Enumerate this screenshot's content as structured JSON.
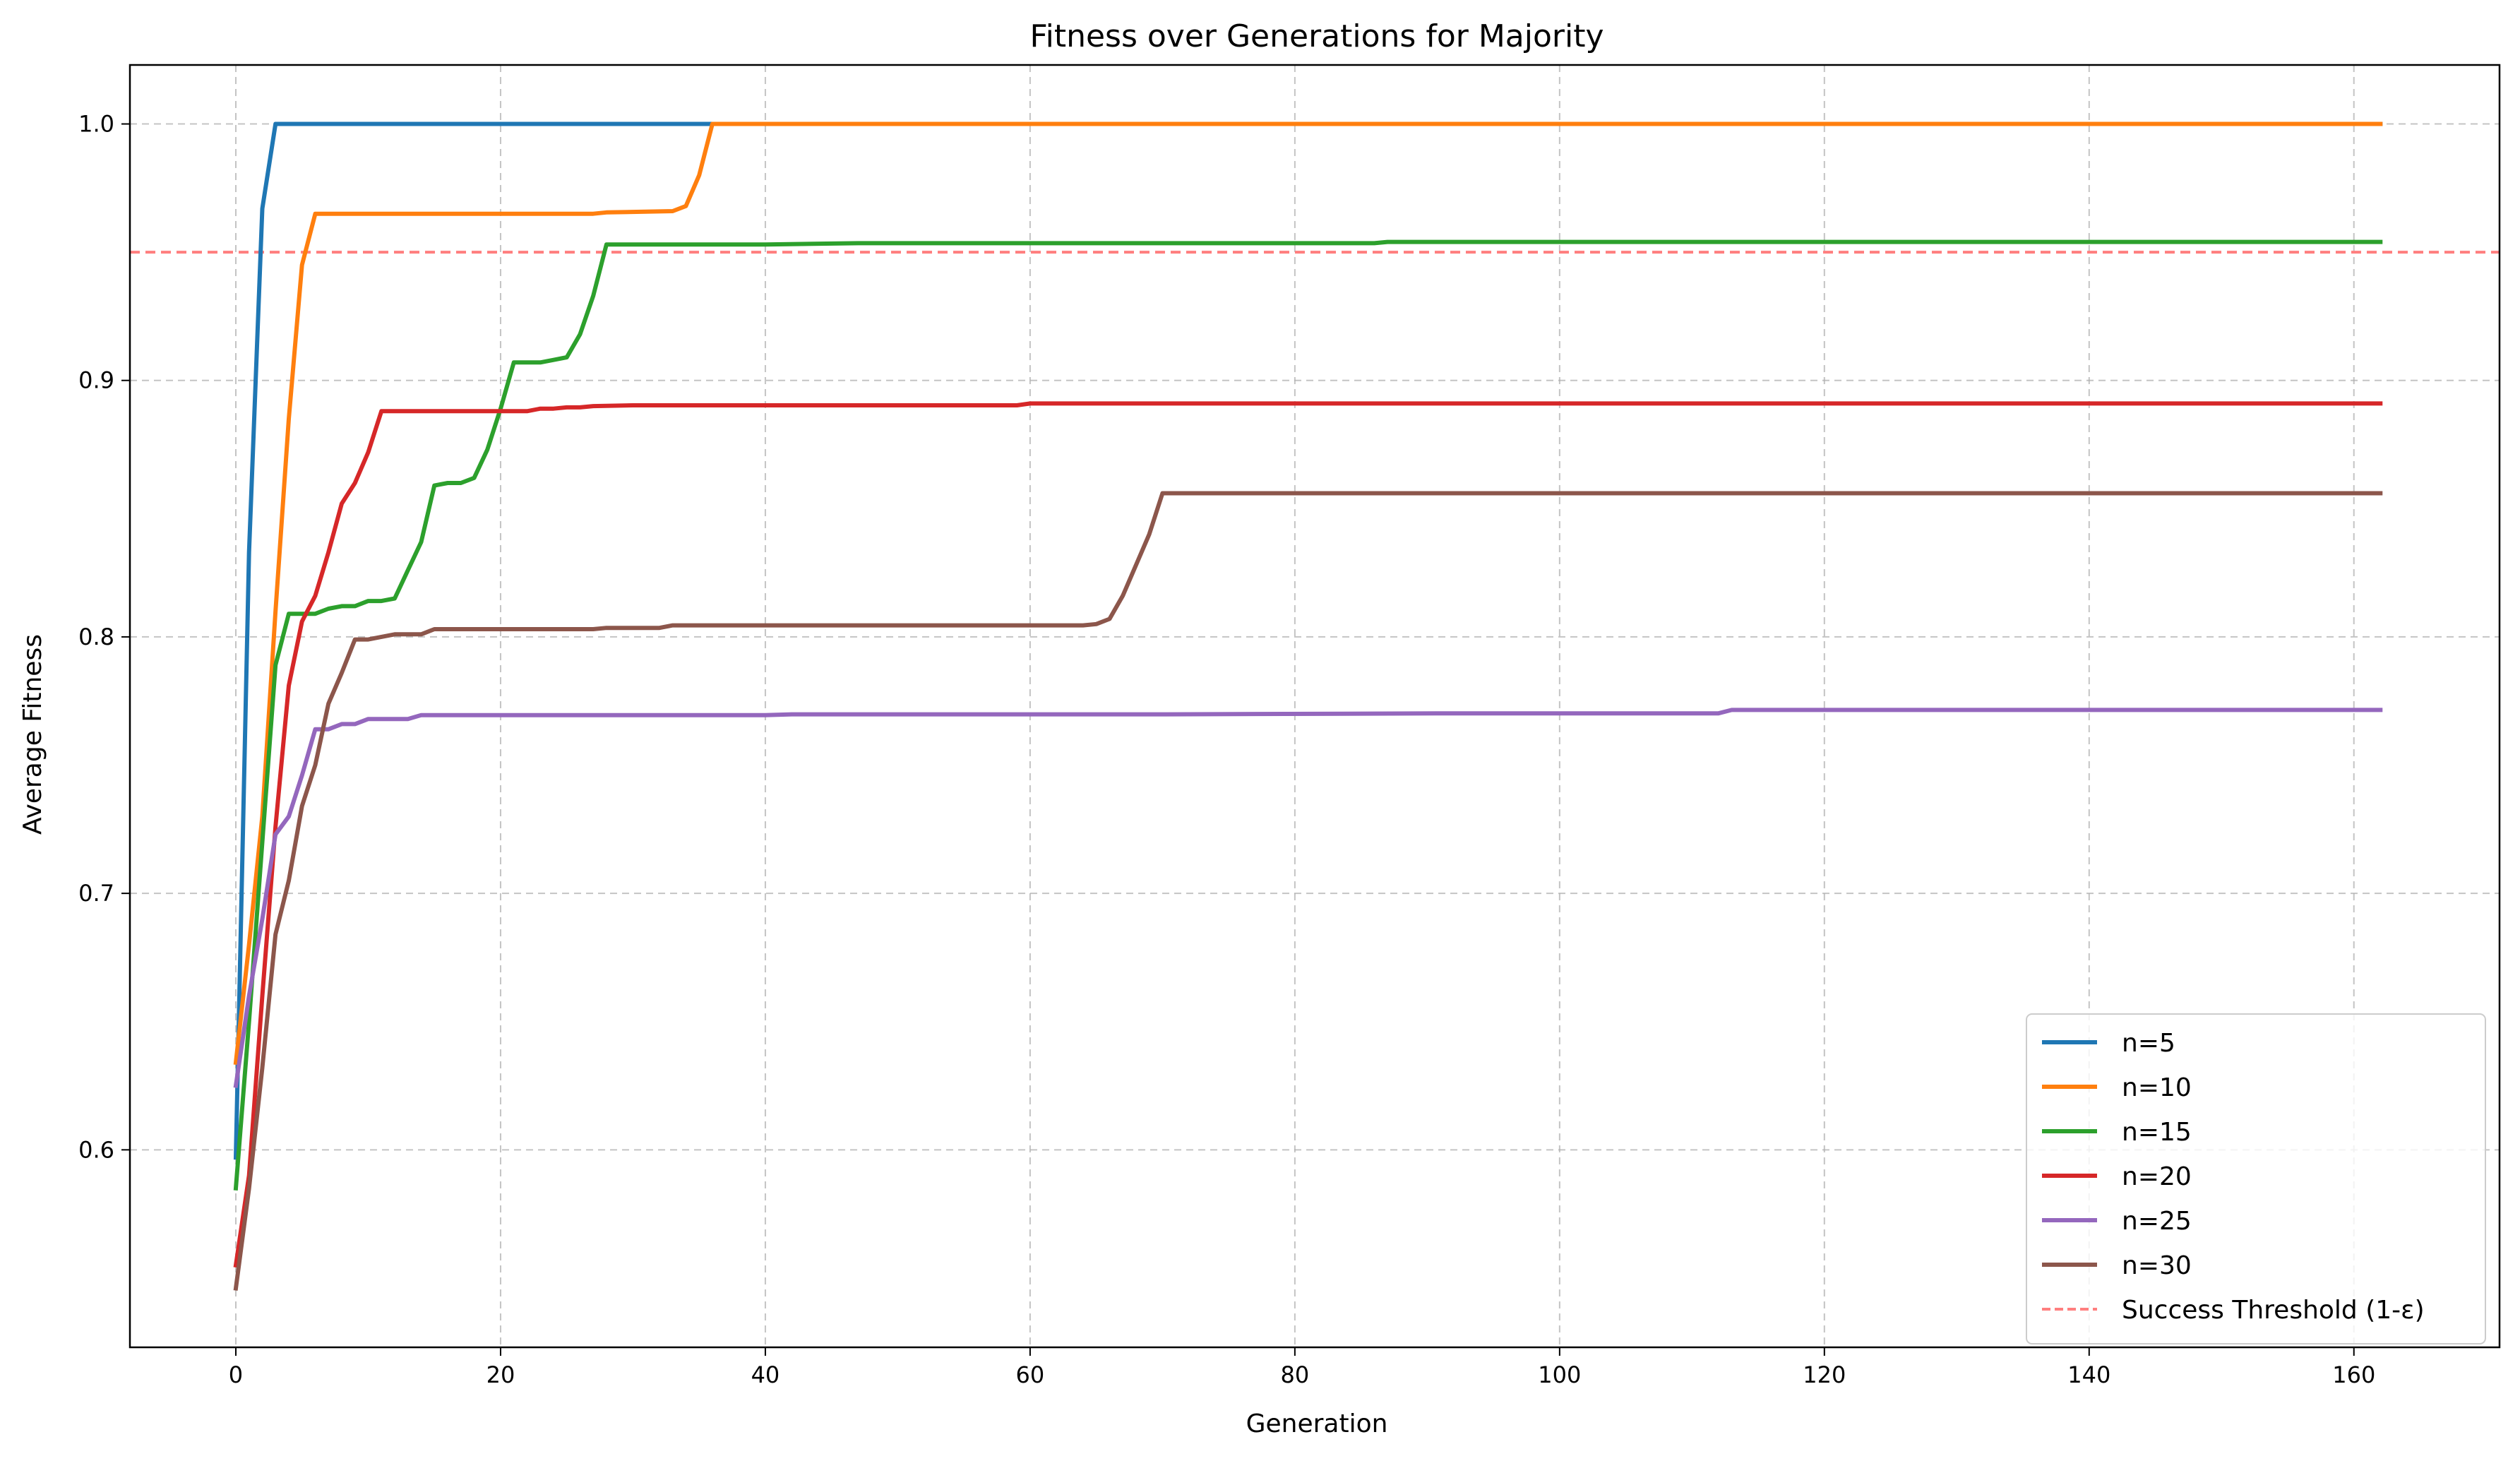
{
  "chart_data": {
    "type": "line",
    "title": "Fitness over Generations for Majority",
    "xlabel": "Generation",
    "ylabel": "Average Fitness",
    "xlim": [
      -8,
      171
    ],
    "ylim": [
      0.523,
      1.023
    ],
    "xticks": [
      0,
      20,
      40,
      60,
      80,
      100,
      120,
      140,
      160
    ],
    "yticks": [
      0.6,
      0.7,
      0.8,
      0.9,
      1.0
    ],
    "xtick_labels": [
      "0",
      "20",
      "40",
      "60",
      "80",
      "100",
      "120",
      "140",
      "160"
    ],
    "ytick_labels": [
      "0.6",
      "0.7",
      "0.8",
      "0.9",
      "1.0"
    ],
    "grid": true,
    "legend_position": "lower-right",
    "series": [
      {
        "name": "n=5",
        "color": "#1f77b4",
        "points": [
          [
            0,
            0.597
          ],
          [
            1,
            0.833
          ],
          [
            2,
            0.967
          ],
          [
            3,
            1.0
          ],
          [
            36,
            1.0
          ],
          [
            162,
            1.0
          ]
        ]
      },
      {
        "name": "n=10",
        "color": "#ff7f0e",
        "points": [
          [
            0,
            0.634
          ],
          [
            1,
            0.68
          ],
          [
            2,
            0.73
          ],
          [
            3,
            0.81
          ],
          [
            4,
            0.885
          ],
          [
            5,
            0.945
          ],
          [
            6,
            0.965
          ],
          [
            20,
            0.965
          ],
          [
            27,
            0.965
          ],
          [
            28,
            0.9655
          ],
          [
            33,
            0.966
          ],
          [
            34,
            0.968
          ],
          [
            35,
            0.98
          ],
          [
            36,
            1.0
          ],
          [
            162,
            1.0
          ]
        ]
      },
      {
        "name": "n=15",
        "color": "#2ca02c",
        "points": [
          [
            0,
            0.585
          ],
          [
            1,
            0.65
          ],
          [
            2,
            0.72
          ],
          [
            3,
            0.789
          ],
          [
            4,
            0.809
          ],
          [
            5,
            0.809
          ],
          [
            6,
            0.809
          ],
          [
            7,
            0.811
          ],
          [
            8,
            0.812
          ],
          [
            9,
            0.812
          ],
          [
            10,
            0.814
          ],
          [
            11,
            0.814
          ],
          [
            12,
            0.815
          ],
          [
            13,
            0.826
          ],
          [
            14,
            0.837
          ],
          [
            15,
            0.859
          ],
          [
            16,
            0.86
          ],
          [
            17,
            0.86
          ],
          [
            18,
            0.862
          ],
          [
            19,
            0.873
          ],
          [
            20,
            0.889
          ],
          [
            21,
            0.907
          ],
          [
            23,
            0.907
          ],
          [
            24,
            0.908
          ],
          [
            25,
            0.909
          ],
          [
            26,
            0.918
          ],
          [
            27,
            0.933
          ],
          [
            28,
            0.953
          ],
          [
            40,
            0.953
          ],
          [
            47,
            0.9535
          ],
          [
            60,
            0.9535
          ],
          [
            86,
            0.9535
          ],
          [
            87,
            0.954
          ],
          [
            162,
            0.954
          ]
        ]
      },
      {
        "name": "n=20",
        "color": "#d62728",
        "points": [
          [
            0,
            0.555
          ],
          [
            1,
            0.59
          ],
          [
            2,
            0.66
          ],
          [
            3,
            0.726
          ],
          [
            4,
            0.781
          ],
          [
            5,
            0.806
          ],
          [
            6,
            0.816
          ],
          [
            7,
            0.833
          ],
          [
            8,
            0.852
          ],
          [
            9,
            0.86
          ],
          [
            10,
            0.872
          ],
          [
            11,
            0.888
          ],
          [
            21,
            0.888
          ],
          [
            22,
            0.888
          ],
          [
            23,
            0.889
          ],
          [
            24,
            0.889
          ],
          [
            25,
            0.8895
          ],
          [
            26,
            0.8895
          ],
          [
            27,
            0.89
          ],
          [
            30,
            0.8903
          ],
          [
            59,
            0.8903
          ],
          [
            60,
            0.891
          ],
          [
            162,
            0.891
          ]
        ]
      },
      {
        "name": "n=25",
        "color": "#9467bd",
        "points": [
          [
            0,
            0.625
          ],
          [
            1,
            0.66
          ],
          [
            2,
            0.69
          ],
          [
            3,
            0.723
          ],
          [
            4,
            0.73
          ],
          [
            5,
            0.746
          ],
          [
            6,
            0.764
          ],
          [
            7,
            0.764
          ],
          [
            8,
            0.766
          ],
          [
            9,
            0.766
          ],
          [
            10,
            0.768
          ],
          [
            13,
            0.768
          ],
          [
            14,
            0.7695
          ],
          [
            40,
            0.7695
          ],
          [
            42,
            0.7698
          ],
          [
            70,
            0.7698
          ],
          [
            92,
            0.7702
          ],
          [
            112,
            0.7702
          ],
          [
            113,
            0.7715
          ],
          [
            162,
            0.7715
          ]
        ]
      },
      {
        "name": "n=30",
        "color": "#8c564b",
        "points": [
          [
            0,
            0.546
          ],
          [
            1,
            0.585
          ],
          [
            2,
            0.632
          ],
          [
            3,
            0.684
          ],
          [
            4,
            0.705
          ],
          [
            5,
            0.734
          ],
          [
            6,
            0.75
          ],
          [
            7,
            0.774
          ],
          [
            8,
            0.786
          ],
          [
            9,
            0.799
          ],
          [
            10,
            0.799
          ],
          [
            11,
            0.8
          ],
          [
            12,
            0.801
          ],
          [
            14,
            0.801
          ],
          [
            15,
            0.803
          ],
          [
            27,
            0.803
          ],
          [
            28,
            0.8035
          ],
          [
            32,
            0.8035
          ],
          [
            33,
            0.8045
          ],
          [
            64,
            0.8045
          ],
          [
            65,
            0.805
          ],
          [
            66,
            0.807
          ],
          [
            67,
            0.816
          ],
          [
            68,
            0.828
          ],
          [
            69,
            0.84
          ],
          [
            70,
            0.856
          ],
          [
            162,
            0.856
          ]
        ]
      }
    ],
    "reference_lines": [
      {
        "name": "Success Threshold (1-ε)",
        "orientation": "horizontal",
        "value": 0.95,
        "color": "#ff7f7f",
        "style": "dashed"
      }
    ]
  }
}
